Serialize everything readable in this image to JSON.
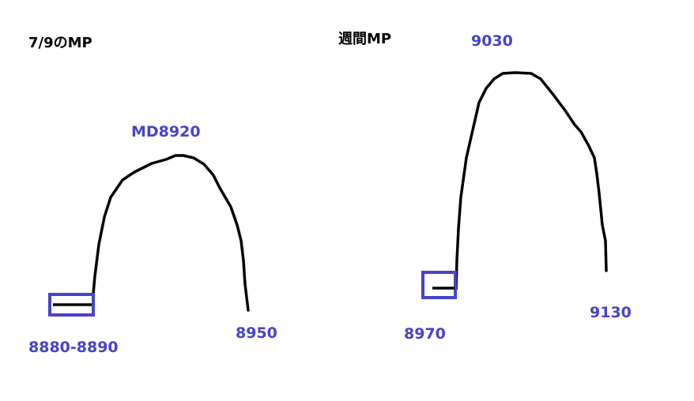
{
  "colors": {
    "label": "#4444cc",
    "curve": "#000000",
    "box": "#4444cc"
  },
  "left_profile": {
    "title": "7/9のMP",
    "peak_label": "MD8920",
    "low_label": "8880-8890",
    "right_label": "8950"
  },
  "right_profile": {
    "title": "週間MP",
    "peak_label": "9030",
    "low_label": "8970",
    "right_label": "9130"
  }
}
